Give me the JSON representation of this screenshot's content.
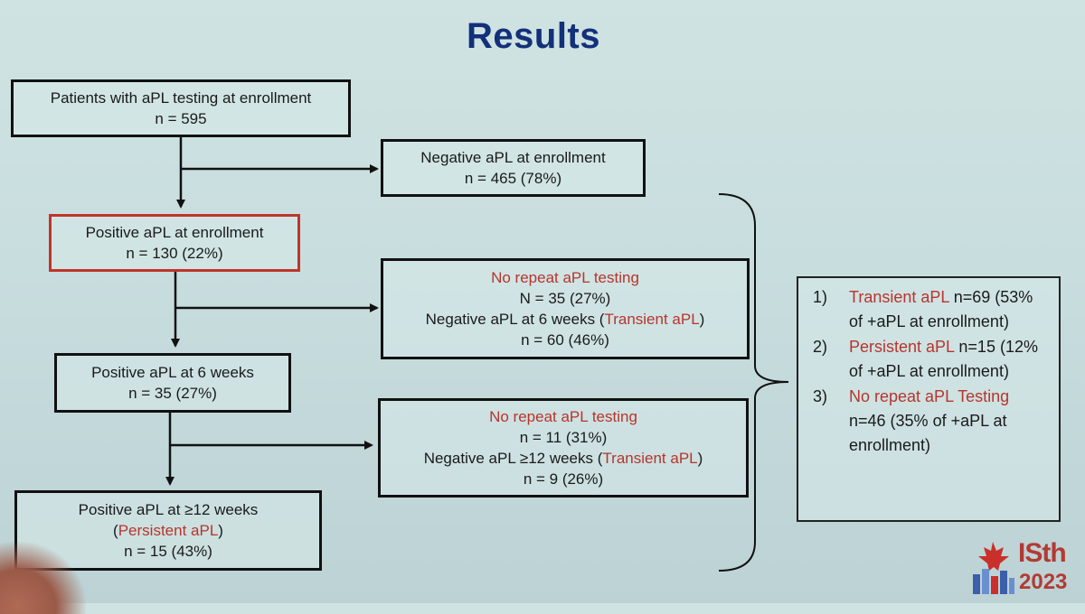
{
  "title": "Results",
  "boxes": {
    "enrollment": {
      "line1": "Patients with aPL testing at enrollment",
      "line2": "n = 595"
    },
    "negative_enrollment": {
      "line1": "Negative aPL at enrollment",
      "line2": "n = 465 (78%)"
    },
    "positive_enrollment": {
      "line1": "Positive aPL at enrollment",
      "line2": "n = 130 (22%)"
    },
    "no_repeat_1": {
      "line1": "No repeat aPL testing",
      "line2": "N = 35 (27%)",
      "line3_prefix": "Negative aPL at 6 weeks (",
      "line3_highlight": "Transient aPL",
      "line3_suffix": ")",
      "line4": "n = 60 (46%)"
    },
    "positive_6w": {
      "line1": "Positive aPL at 6 weeks",
      "line2": "n = 35 (27%)"
    },
    "no_repeat_2": {
      "line1": "No repeat aPL testing",
      "line2": "n = 11 (31%)",
      "line3_prefix": "Negative aPL ≥12 weeks (",
      "line3_highlight": "Transient aPL",
      "line3_suffix": ")",
      "line4": "n = 9 (26%)"
    },
    "positive_12w": {
      "line1": "Positive aPL at ≥12 weeks",
      "line2_prefix": "(",
      "line2_highlight": "Persistent aPL",
      "line2_suffix": ")",
      "line3": "n = 15 (43%)"
    }
  },
  "summary": [
    {
      "num": "1)",
      "highlight": "Transient aPL",
      "text": " n=69 (53% of +aPL at enrollment)"
    },
    {
      "num": "2)",
      "highlight": "Persistent aPL",
      "text": " n=15 (12% of +aPL at enrollment)"
    },
    {
      "num": "3)",
      "highlight": "No repeat aPL Testing",
      "text": " n=46 (35% of +aPL at enrollment)"
    }
  ],
  "logo": {
    "brand": "ISth",
    "year": "2023"
  },
  "colors": {
    "title": "#13307a",
    "highlight": "#b7352c",
    "red_border": "#c0342a"
  }
}
